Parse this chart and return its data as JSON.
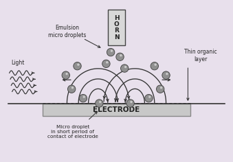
{
  "bg_color": "#e8e0ec",
  "electrode_face": "#c8c8c8",
  "electrode_border": "#888888",
  "horn_color": "#d8d8d8",
  "horn_border": "#444444",
  "droplet_color": "#909090",
  "droplet_edge": "#444444",
  "line_color": "#333333",
  "text_color": "#222222",
  "electrode_label": "ELECTRODE",
  "horn_label": "H\nO\nR\nN",
  "label_emulsion": "Emulsion\nmicro droplets",
  "label_light": "Light",
  "label_thin": "Thin organic\nlayer",
  "label_micro": "Micro droplet\nin short period of\ncontact of electrode",
  "figsize": [
    3.39,
    2.36
  ],
  "dpi": 100
}
